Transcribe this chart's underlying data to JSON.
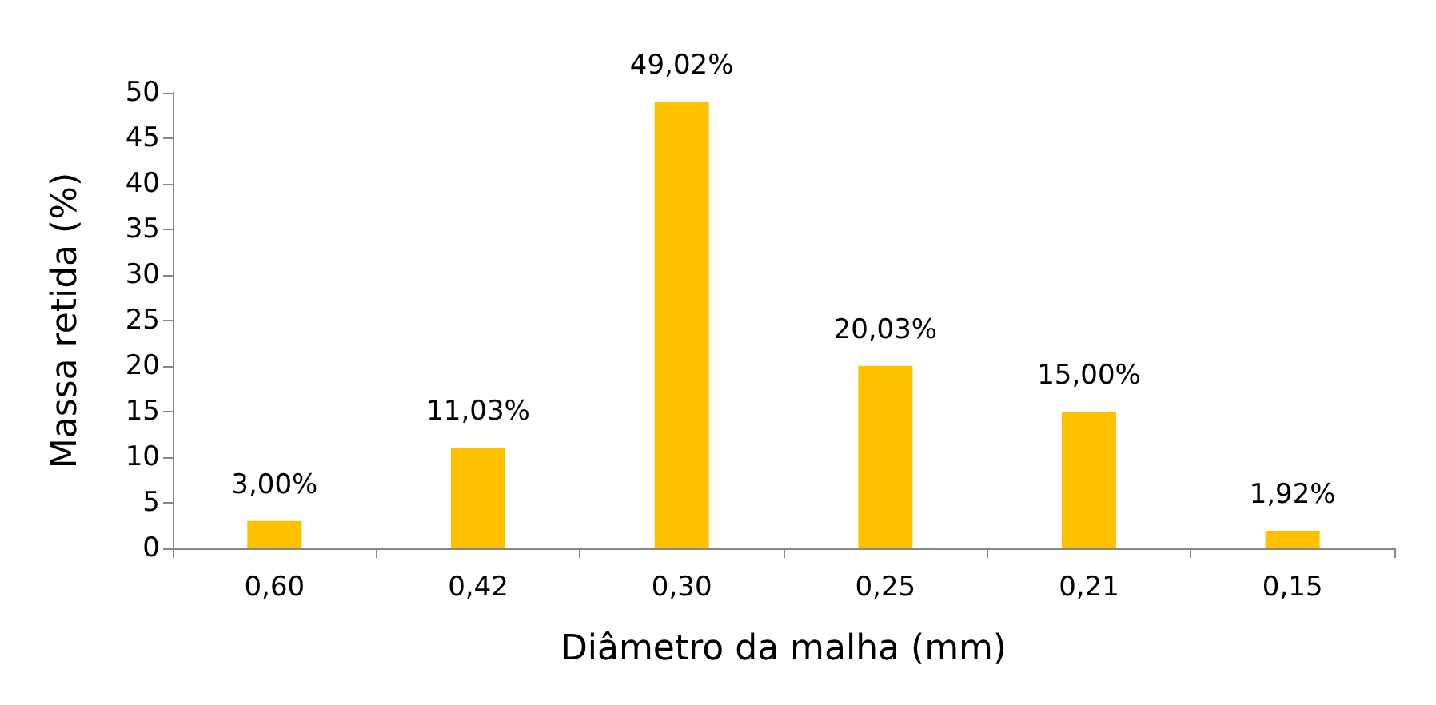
{
  "chart_data": {
    "type": "bar",
    "xlabel": "Diâmetro da malha (mm)",
    "ylabel": "Massa retida (%)",
    "categories": [
      "0,60",
      "0,42",
      "0,30",
      "0,25",
      "0,21",
      "0,15"
    ],
    "values": [
      3.0,
      11.03,
      49.02,
      20.03,
      15.0,
      1.92
    ],
    "value_labels": [
      "3,00%",
      "11,03%",
      "49,02%",
      "20,03%",
      "15,00%",
      "1,92%"
    ],
    "color": "#ffc000",
    "ylim": [
      0,
      50
    ],
    "yticks": [
      0,
      5,
      10,
      15,
      20,
      25,
      30,
      35,
      40,
      45,
      50
    ]
  }
}
